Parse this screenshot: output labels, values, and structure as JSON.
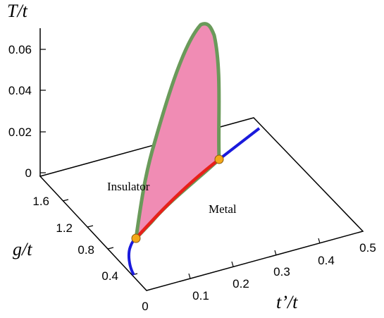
{
  "axes": {
    "vertical": {
      "label": "T/t",
      "ticks": [
        "0.06",
        "0.04",
        "0.02",
        "0"
      ]
    },
    "left": {
      "label": "g/t",
      "ticks": [
        "1.6",
        "1.2",
        "0.8",
        "0.4"
      ]
    },
    "front": {
      "label": "t’/t",
      "ticks": [
        "0",
        "0.1",
        "0.2",
        "0.3",
        "0.4",
        "0.5"
      ]
    }
  },
  "regions": {
    "insulator": "Insulator",
    "metal": "Metal"
  }
}
